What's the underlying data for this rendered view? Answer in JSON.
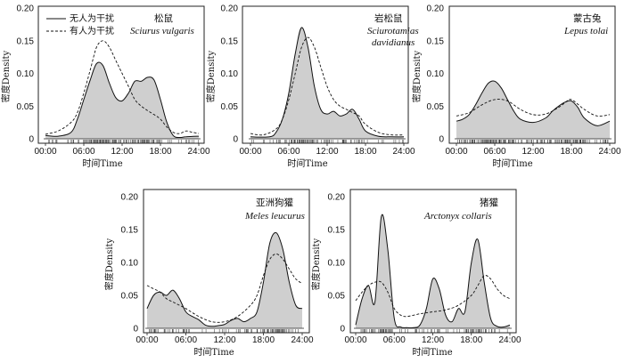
{
  "figure": {
    "legend": {
      "undisturbed": "无人为干扰",
      "disturbed": "有人为干扰"
    },
    "colors": {
      "fill": "#cfcfcf",
      "line": "#111111",
      "frame": "#222222"
    }
  },
  "chart_data": [
    {
      "type": "area",
      "id": "p1",
      "species_cn": "松鼠",
      "species_sci": "Sciurus vulgaris",
      "xlabel": "时间Time",
      "ylabel": "密度Density",
      "xticks": [
        "00:00",
        "06:00",
        "12:00",
        "18:00",
        "24:00"
      ],
      "yticks": [
        "0",
        "0.05",
        "0.10",
        "0.15",
        "0.20"
      ],
      "xlim": [
        0,
        24
      ],
      "ylim": [
        0,
        0.2
      ],
      "series": [
        {
          "name": "无人为干扰",
          "style": "solid-filled",
          "x": [
            0,
            2,
            4,
            5,
            6,
            7,
            8,
            9,
            10,
            11,
            12,
            13,
            14,
            15,
            16,
            17,
            18,
            19,
            20,
            21,
            22,
            24
          ],
          "y": [
            0.005,
            0.004,
            0.01,
            0.03,
            0.06,
            0.09,
            0.115,
            0.112,
            0.085,
            0.063,
            0.058,
            0.07,
            0.088,
            0.088,
            0.094,
            0.09,
            0.06,
            0.025,
            0.005,
            0.002,
            0.003,
            0.004
          ]
        },
        {
          "name": "有人为干扰",
          "style": "dashed",
          "x": [
            0,
            2,
            4,
            5,
            6,
            7,
            8,
            9,
            10,
            11,
            12,
            13,
            14,
            15,
            16,
            17,
            18,
            19,
            20,
            21,
            22,
            23,
            24
          ],
          "y": [
            0.007,
            0.012,
            0.025,
            0.04,
            0.07,
            0.105,
            0.14,
            0.15,
            0.14,
            0.12,
            0.1,
            0.08,
            0.06,
            0.05,
            0.043,
            0.037,
            0.03,
            0.018,
            0.01,
            0.008,
            0.012,
            0.01,
            0.008
          ]
        }
      ]
    },
    {
      "type": "area",
      "id": "p2",
      "species_cn": "岩松鼠",
      "species_sci": "Sciurotamias davidianus",
      "xlabel": "时间Time",
      "ylabel": "密度Density",
      "xticks": [
        "00:00",
        "06:00",
        "12:00",
        "18:00",
        "24:00"
      ],
      "yticks": [
        "0",
        "0.05",
        "0.10",
        "0.15",
        "0.20"
      ],
      "xlim": [
        0,
        24
      ],
      "ylim": [
        0,
        0.2
      ],
      "series": [
        {
          "name": "无人为干扰",
          "style": "solid-filled",
          "x": [
            0,
            3,
            4,
            5,
            6,
            7,
            8,
            9,
            10,
            11,
            12,
            13,
            14,
            15,
            16,
            17,
            18,
            20,
            22,
            24
          ],
          "y": [
            0.003,
            0.003,
            0.01,
            0.03,
            0.07,
            0.13,
            0.17,
            0.14,
            0.08,
            0.045,
            0.038,
            0.042,
            0.035,
            0.038,
            0.045,
            0.03,
            0.012,
            0.004,
            0.003,
            0.003
          ]
        },
        {
          "name": "有人为干扰",
          "style": "dashed",
          "x": [
            0,
            2,
            4,
            5,
            6,
            7,
            8,
            9,
            10,
            11,
            12,
            13,
            14,
            15,
            16,
            17,
            18,
            20,
            22,
            24
          ],
          "y": [
            0.008,
            0.006,
            0.015,
            0.03,
            0.06,
            0.1,
            0.14,
            0.155,
            0.14,
            0.11,
            0.08,
            0.06,
            0.05,
            0.045,
            0.04,
            0.035,
            0.022,
            0.01,
            0.006,
            0.006
          ]
        }
      ]
    },
    {
      "type": "area",
      "id": "p3",
      "species_cn": "蒙古兔",
      "species_sci": "Lepus tolai",
      "xlabel": "时间Time",
      "ylabel": "密度Density",
      "xticks": [
        "00:00",
        "06:00",
        "12:00",
        "18:00",
        "24:00"
      ],
      "yticks": [
        "0",
        "0.05",
        "0.10",
        "0.15",
        "0.20"
      ],
      "xlim": [
        0,
        24
      ],
      "ylim": [
        0,
        0.2
      ],
      "series": [
        {
          "name": "无人为干扰",
          "style": "solid-filled",
          "x": [
            0,
            1,
            2,
            3,
            4,
            5,
            6,
            7,
            8,
            9,
            10,
            12,
            14,
            15,
            16,
            17,
            18,
            19,
            20,
            22,
            24
          ],
          "y": [
            0.027,
            0.03,
            0.037,
            0.052,
            0.07,
            0.085,
            0.088,
            0.078,
            0.06,
            0.042,
            0.03,
            0.025,
            0.032,
            0.042,
            0.05,
            0.056,
            0.058,
            0.048,
            0.032,
            0.02,
            0.027
          ]
        },
        {
          "name": "有人为干扰",
          "style": "dashed",
          "x": [
            0,
            2,
            4,
            6,
            8,
            10,
            12,
            14,
            16,
            17,
            18,
            20,
            22,
            24
          ],
          "y": [
            0.035,
            0.04,
            0.052,
            0.06,
            0.058,
            0.045,
            0.037,
            0.038,
            0.048,
            0.055,
            0.06,
            0.045,
            0.035,
            0.037
          ]
        }
      ]
    },
    {
      "type": "area",
      "id": "p4",
      "species_cn": "亚洲狗獾",
      "species_sci": "Meles leucurus",
      "xlabel": "时间Time",
      "ylabel": "密度Density",
      "xticks": [
        "00:00",
        "06:00",
        "12:00",
        "18:00",
        "24:00"
      ],
      "yticks": [
        "0",
        "0.05",
        "0.10",
        "0.15",
        "0.20"
      ],
      "xlim": [
        0,
        24
      ],
      "ylim": [
        0,
        0.2
      ],
      "series": [
        {
          "name": "无人为干扰",
          "style": "solid-filled",
          "x": [
            0,
            1,
            2,
            3,
            4,
            5,
            6,
            7,
            8,
            9,
            10,
            11,
            12,
            13,
            14,
            15,
            16,
            17,
            18,
            19,
            20,
            21,
            22,
            23,
            24
          ],
          "y": [
            0.03,
            0.05,
            0.055,
            0.05,
            0.058,
            0.045,
            0.025,
            0.018,
            0.013,
            0.005,
            0.003,
            0.004,
            0.006,
            0.012,
            0.015,
            0.01,
            0.015,
            0.025,
            0.07,
            0.13,
            0.145,
            0.12,
            0.07,
            0.035,
            0.03
          ]
        },
        {
          "name": "有人为干扰",
          "style": "dashed",
          "x": [
            0,
            1,
            2,
            3,
            4,
            5,
            6,
            8,
            10,
            12,
            14,
            16,
            17,
            18,
            19,
            20,
            21,
            22,
            23,
            24
          ],
          "y": [
            0.065,
            0.06,
            0.055,
            0.045,
            0.04,
            0.035,
            0.03,
            0.018,
            0.01,
            0.01,
            0.018,
            0.035,
            0.05,
            0.08,
            0.105,
            0.113,
            0.105,
            0.09,
            0.075,
            0.068
          ]
        }
      ]
    },
    {
      "type": "area",
      "id": "p5",
      "species_cn": "猪獾",
      "species_sci": "Arctonyx collaris",
      "xlabel": "时间Time",
      "ylabel": "密度Density",
      "xticks": [
        "00:00",
        "06:00",
        "12:00",
        "18:00",
        "24:00"
      ],
      "yticks": [
        "0",
        "0.05",
        "0.10",
        "0.15",
        "0.20"
      ],
      "xlim": [
        0,
        24
      ],
      "ylim": [
        0,
        0.2
      ],
      "series": [
        {
          "name": "无人为干扰",
          "style": "solid-filled",
          "x": [
            0,
            1,
            2,
            3,
            4,
            5,
            6,
            7,
            8,
            9,
            10,
            11,
            12,
            13,
            14,
            15,
            16,
            17,
            18,
            19,
            20,
            21,
            22,
            23,
            24
          ],
          "y": [
            0.005,
            0.045,
            0.065,
            0.04,
            0.17,
            0.12,
            0.015,
            0.002,
            0.001,
            0.001,
            0.005,
            0.03,
            0.075,
            0.06,
            0.02,
            0.01,
            0.03,
            0.025,
            0.1,
            0.135,
            0.07,
            0.015,
            0.003,
            0.002,
            0.005
          ]
        },
        {
          "name": "有人为干扰",
          "style": "dashed",
          "x": [
            0,
            1,
            2,
            3,
            4,
            5,
            6,
            7,
            8,
            10,
            12,
            14,
            16,
            18,
            19,
            20,
            21,
            22,
            23,
            24
          ],
          "y": [
            0.042,
            0.055,
            0.065,
            0.07,
            0.07,
            0.055,
            0.03,
            0.02,
            0.018,
            0.022,
            0.025,
            0.028,
            0.035,
            0.05,
            0.065,
            0.08,
            0.075,
            0.06,
            0.05,
            0.045
          ]
        }
      ]
    }
  ]
}
